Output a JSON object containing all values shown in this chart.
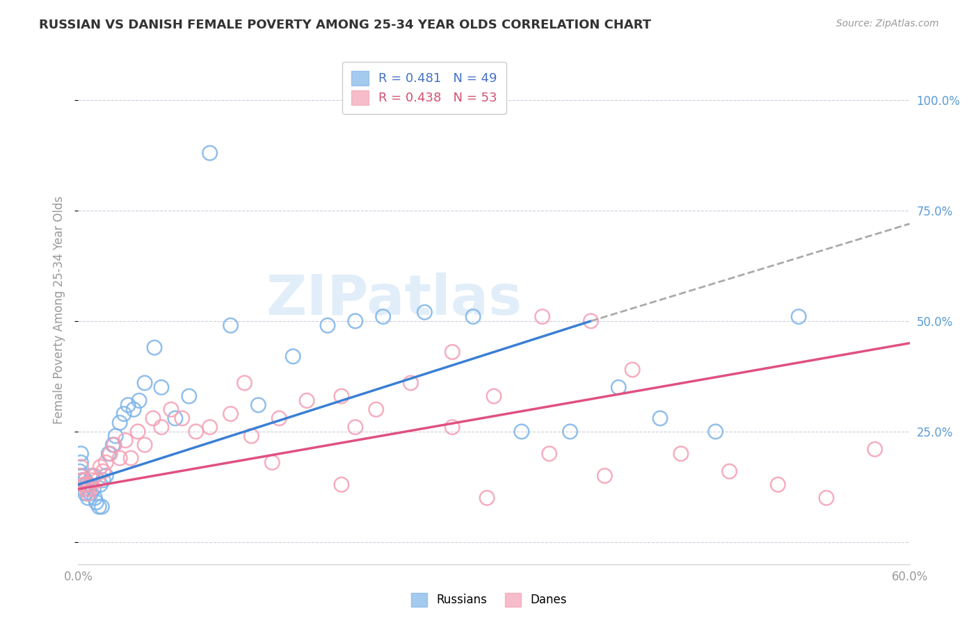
{
  "title": "RUSSIAN VS DANISH FEMALE POVERTY AMONG 25-34 YEAR OLDS CORRELATION CHART",
  "source": "Source: ZipAtlas.com",
  "ylabel": "Female Poverty Among 25-34 Year Olds",
  "xlim": [
    0.0,
    0.6
  ],
  "ylim": [
    -0.05,
    1.1
  ],
  "yticks": [
    0.0,
    0.25,
    0.5,
    0.75,
    1.0
  ],
  "ytick_labels": [
    "",
    "25.0%",
    "50.0%",
    "75.0%",
    "100.0%"
  ],
  "xticks": [
    0.0,
    0.1,
    0.2,
    0.3,
    0.4,
    0.5,
    0.6
  ],
  "color_russian": "#7eb4e8",
  "color_danish": "#f4a0b4",
  "color_trend_russian": "#3a7fd4",
  "color_trend_danish": "#e05080",
  "color_trend_extrap": "#aaaaaa",
  "background_color": "#ffffff",
  "grid_color": "#ccccdd",
  "watermark": "ZIPatlas",
  "russians_x": [
    0.001,
    0.002,
    0.002,
    0.003,
    0.003,
    0.004,
    0.005,
    0.005,
    0.006,
    0.007,
    0.008,
    0.009,
    0.01,
    0.011,
    0.012,
    0.013,
    0.015,
    0.016,
    0.017,
    0.018,
    0.02,
    0.022,
    0.025,
    0.027,
    0.03,
    0.033,
    0.036,
    0.04,
    0.044,
    0.048,
    0.055,
    0.06,
    0.07,
    0.08,
    0.095,
    0.11,
    0.13,
    0.155,
    0.18,
    0.2,
    0.22,
    0.25,
    0.285,
    0.32,
    0.355,
    0.39,
    0.42,
    0.46,
    0.52
  ],
  "russians_y": [
    0.16,
    0.2,
    0.18,
    0.15,
    0.14,
    0.12,
    0.14,
    0.11,
    0.13,
    0.1,
    0.13,
    0.11,
    0.15,
    0.12,
    0.1,
    0.09,
    0.08,
    0.13,
    0.08,
    0.14,
    0.15,
    0.2,
    0.22,
    0.24,
    0.27,
    0.29,
    0.31,
    0.3,
    0.32,
    0.36,
    0.44,
    0.35,
    0.28,
    0.33,
    0.88,
    0.49,
    0.31,
    0.42,
    0.49,
    0.5,
    0.51,
    0.52,
    0.51,
    0.25,
    0.25,
    0.35,
    0.28,
    0.25,
    0.51
  ],
  "danes_x": [
    0.001,
    0.002,
    0.003,
    0.004,
    0.005,
    0.006,
    0.007,
    0.008,
    0.009,
    0.01,
    0.012,
    0.014,
    0.016,
    0.018,
    0.02,
    0.023,
    0.026,
    0.03,
    0.034,
    0.038,
    0.043,
    0.048,
    0.054,
    0.06,
    0.067,
    0.075,
    0.085,
    0.095,
    0.11,
    0.125,
    0.145,
    0.165,
    0.19,
    0.215,
    0.24,
    0.27,
    0.3,
    0.335,
    0.37,
    0.4,
    0.435,
    0.47,
    0.505,
    0.54,
    0.575,
    0.34,
    0.38,
    0.12,
    0.2,
    0.27,
    0.14,
    0.19,
    0.295
  ],
  "danes_y": [
    0.15,
    0.17,
    0.14,
    0.13,
    0.13,
    0.12,
    0.11,
    0.13,
    0.12,
    0.14,
    0.15,
    0.14,
    0.17,
    0.16,
    0.18,
    0.2,
    0.22,
    0.19,
    0.23,
    0.19,
    0.25,
    0.22,
    0.28,
    0.26,
    0.3,
    0.28,
    0.25,
    0.26,
    0.29,
    0.24,
    0.28,
    0.32,
    0.33,
    0.3,
    0.36,
    0.26,
    0.33,
    0.51,
    0.5,
    0.39,
    0.2,
    0.16,
    0.13,
    0.1,
    0.21,
    0.2,
    0.15,
    0.36,
    0.26,
    0.43,
    0.18,
    0.13,
    0.1
  ]
}
